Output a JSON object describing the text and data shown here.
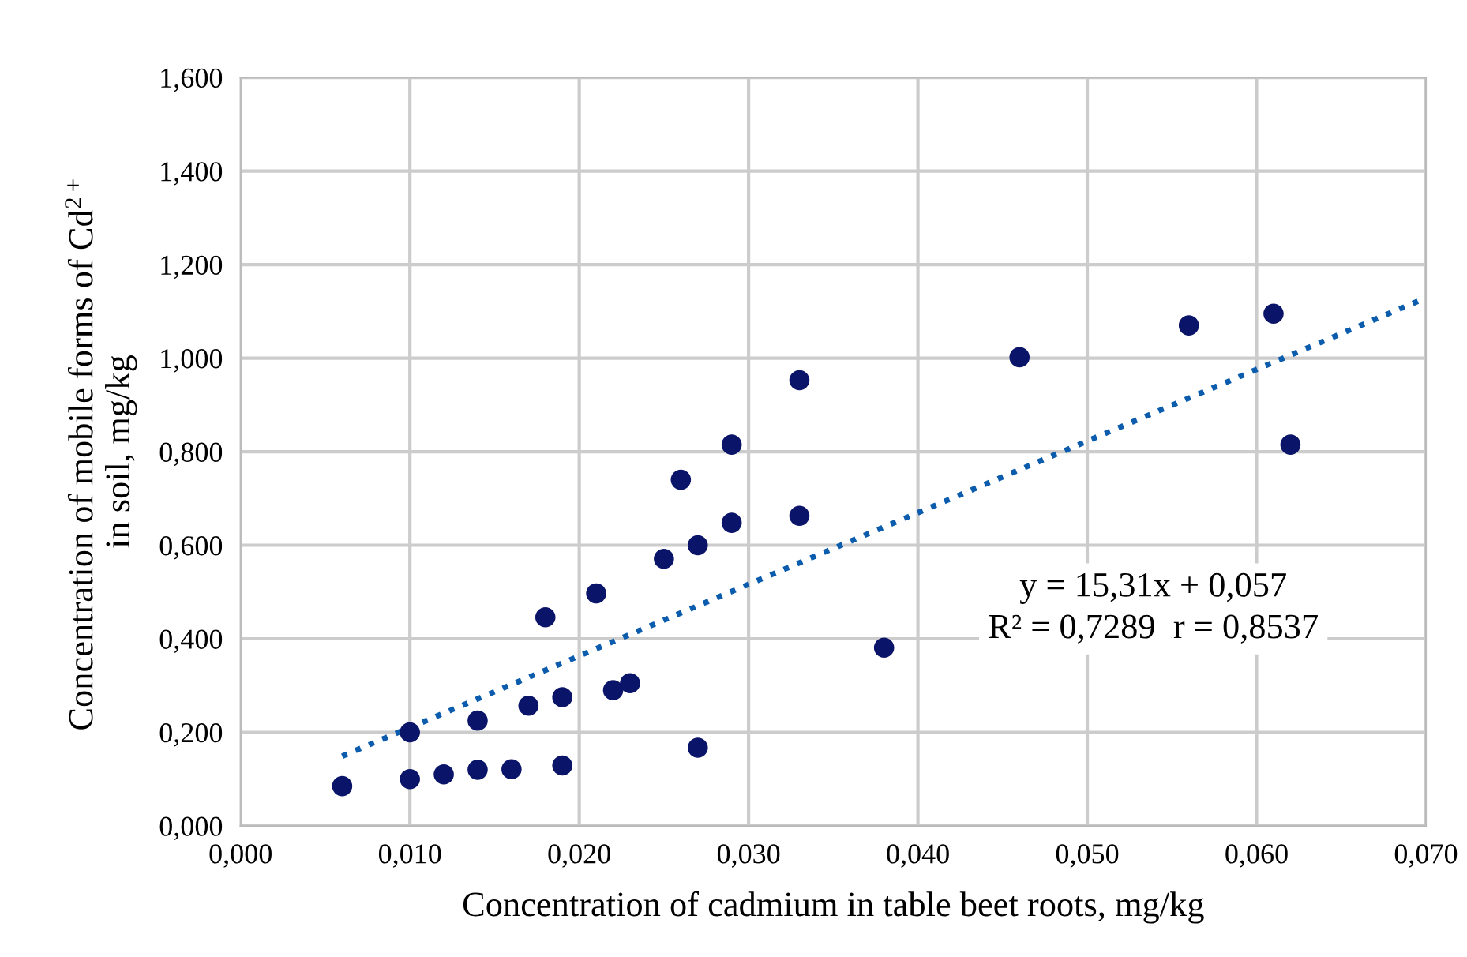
{
  "chart_data": {
    "type": "scatter",
    "xlabel": "Concentration of cadmium in table beet roots, mg/kg",
    "ylabel": "Concentration of mobile forms of Cd$^{2+}$\nin soil, mg/kg",
    "series": [
      {
        "color": "#0a1468",
        "marker": "circle",
        "x": [
          0.006,
          0.01,
          0.01,
          0.012,
          0.014,
          0.014,
          0.016,
          0.017,
          0.019,
          0.019,
          0.018,
          0.021,
          0.022,
          0.023,
          0.027,
          0.025,
          0.027,
          0.029,
          0.026,
          0.029,
          0.033,
          0.033,
          0.038,
          0.046,
          0.056,
          0.061,
          0.062
        ],
        "values": [
          0.085,
          0.2,
          0.1,
          0.11,
          0.12,
          0.225,
          0.121,
          0.257,
          0.129,
          0.275,
          0.446,
          0.497,
          0.29,
          0.305,
          0.167,
          0.571,
          0.6,
          0.815,
          0.74,
          0.648,
          0.953,
          0.663,
          0.381,
          1.002,
          1.07,
          1.095,
          0.815
        ]
      },
      {
        "type": "line",
        "color": "#0b5cad",
        "line_style": "dotted",
        "x": [
          0.006,
          0.07
        ],
        "values": [
          0.149,
          1.129
        ]
      }
    ],
    "xlim": [
      0.0,
      0.07
    ],
    "xticks": [
      {
        "value": 0.0,
        "label": "0,000"
      },
      {
        "value": 0.01,
        "label": "0,010"
      },
      {
        "value": 0.02,
        "label": "0,020"
      },
      {
        "value": 0.03,
        "label": "0,030"
      },
      {
        "value": 0.04,
        "label": "0,040"
      },
      {
        "value": 0.05,
        "label": "0,050"
      },
      {
        "value": 0.06,
        "label": "0,060"
      },
      {
        "value": 0.07,
        "label": "0,070"
      }
    ],
    "ylim": [
      0.0,
      1.6
    ],
    "yticks": [
      {
        "value": 0.0,
        "label": "0,000"
      },
      {
        "value": 0.2,
        "label": "0,200"
      },
      {
        "value": 0.4,
        "label": "0,400"
      },
      {
        "value": 0.6,
        "label": "0,600"
      },
      {
        "value": 0.8,
        "label": "0,800"
      },
      {
        "value": 1.0,
        "label": "1,000"
      },
      {
        "value": 1.2,
        "label": "1,200"
      },
      {
        "value": 1.4,
        "label": "1,400"
      },
      {
        "value": 1.6,
        "label": "1,600"
      }
    ],
    "grid": true,
    "annotations": [
      "y = 15,31x + 0,057\nR² = 0,7289  r = 0,8537"
    ]
  }
}
